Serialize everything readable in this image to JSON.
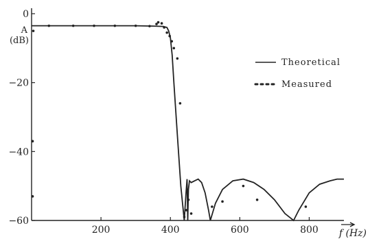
{
  "chart_data": {
    "type": "line",
    "xlabel": "f (Hz)",
    "ylabel_line1": "A",
    "ylabel_line2": "(dB)",
    "xlim": [
      0,
      900
    ],
    "ylim": [
      -60,
      0
    ],
    "x_ticks": [
      200,
      400,
      600,
      800
    ],
    "x_tick_labels": [
      "200",
      "400",
      "600",
      "800"
    ],
    "y_ticks": [
      0,
      -20,
      -40,
      -60
    ],
    "y_tick_labels": [
      "0",
      "−20",
      "−40",
      "−60"
    ],
    "legend": {
      "position": "right",
      "entries": [
        {
          "label": "Theoretical",
          "style": "solid"
        },
        {
          "label": "Measured",
          "style": "dotted"
        }
      ]
    },
    "series": [
      {
        "name": "Theoretical",
        "style": "line",
        "x": [
          0,
          50,
          100,
          150,
          200,
          250,
          300,
          350,
          380,
          390,
          395,
          400,
          405,
          410,
          420,
          430,
          440,
          445,
          448,
          450,
          452,
          455,
          460,
          470,
          480,
          490,
          500,
          510,
          515,
          530,
          550,
          580,
          610,
          640,
          670,
          700,
          730,
          755,
          770,
          800,
          830,
          860,
          880,
          900
        ],
        "y": [
          -3.5,
          -3.5,
          -3.5,
          -3.5,
          -3.5,
          -3.5,
          -3.5,
          -3.6,
          -3.7,
          -4,
          -5,
          -7,
          -12,
          -20,
          -35,
          -50,
          -60,
          -52,
          -48,
          -60,
          -51,
          -48.5,
          -49,
          -48.5,
          -48,
          -49,
          -52,
          -57,
          -60,
          -55,
          -51,
          -48.5,
          -48,
          -49,
          -51,
          -54,
          -58,
          -60,
          -57,
          -52,
          -49.5,
          -48.5,
          -48,
          -48
        ]
      },
      {
        "name": "Measured",
        "style": "points",
        "x": [
          5,
          50,
          120,
          180,
          240,
          300,
          340,
          360,
          365,
          375,
          382,
          390,
          398,
          404,
          410,
          420,
          428,
          440,
          446,
          452,
          460,
          520,
          550,
          610,
          650,
          790,
          3,
          3
        ],
        "y": [
          -5,
          -3.5,
          -3.5,
          -3.5,
          -3.5,
          -3.5,
          -3.6,
          -3,
          -2.5,
          -2.8,
          -4,
          -5.5,
          -6.5,
          -8,
          -10,
          -13,
          -26,
          -59,
          -57,
          -54,
          -58,
          -56,
          -54.5,
          -50,
          -54,
          -56,
          -37,
          -53
        ]
      }
    ]
  }
}
